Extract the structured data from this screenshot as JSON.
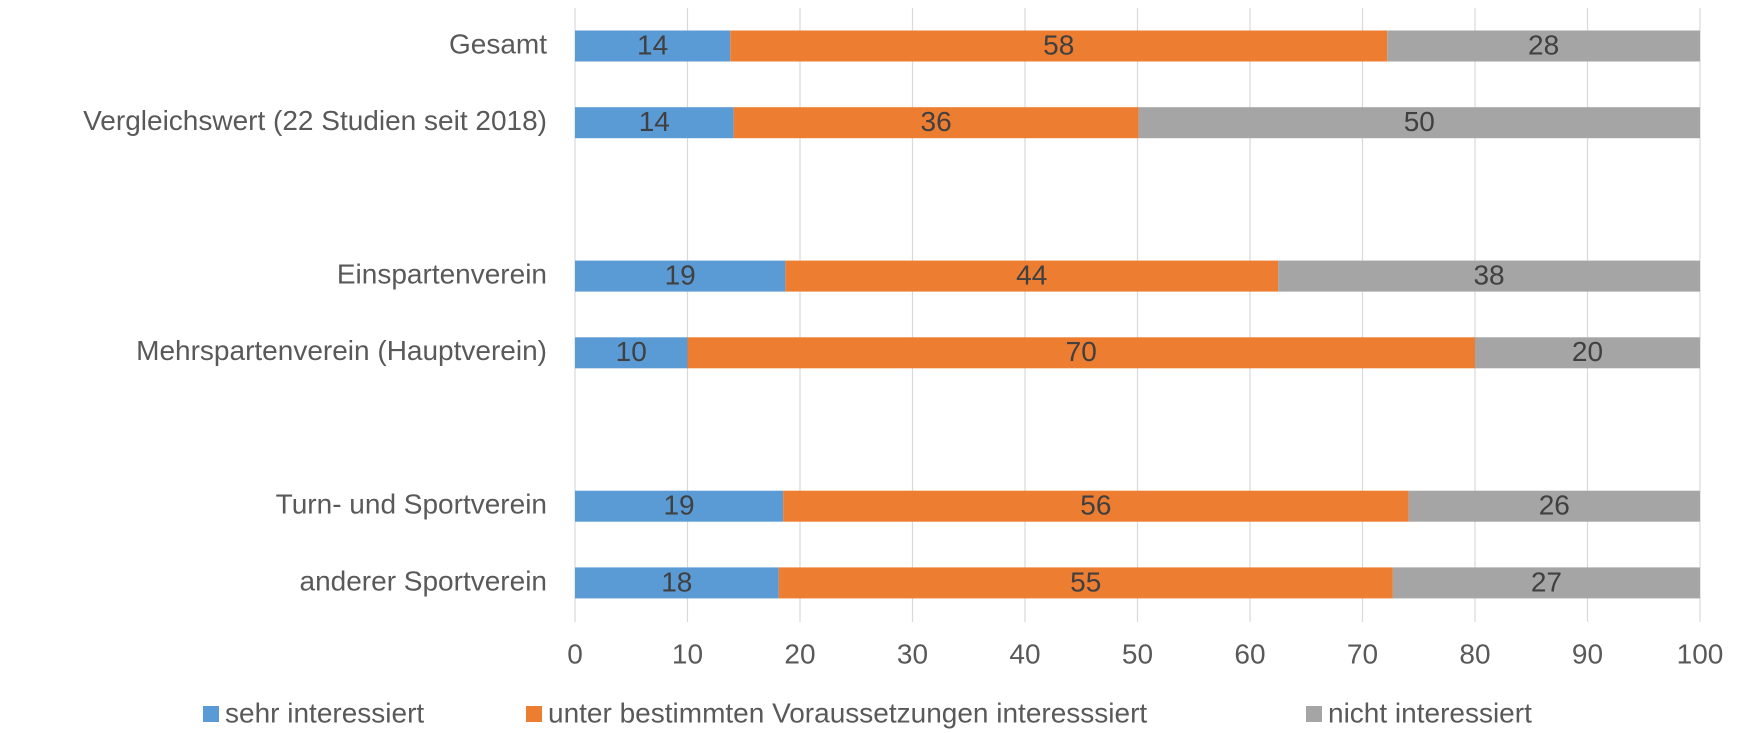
{
  "chart_data": {
    "type": "stacked_barh",
    "categories": [
      "Gesamt",
      "Vergleichswert (22 Studien seit 2018)",
      null,
      "Einspartenverein",
      "Mehrspartenverein (Hauptverein)",
      null,
      "Turn- und Sportverein",
      "anderer Sportverein"
    ],
    "series": [
      {
        "name": "sehr interessiert",
        "color": "#5b9bd5",
        "values": [
          13.8,
          14.1,
          null,
          18.7,
          10.0,
          null,
          18.5,
          18.1
        ],
        "value_labels": [
          "14",
          "14",
          null,
          "19",
          "10",
          null,
          "19",
          "18"
        ]
      },
      {
        "name": "unter bestimmten Voraussetzungen interesssiert",
        "color": "#ed7d31",
        "values": [
          58.4,
          36.0,
          null,
          43.8,
          70.0,
          null,
          55.6,
          54.6
        ],
        "value_labels": [
          "58",
          "36",
          null,
          "44",
          "70",
          null,
          "56",
          "55"
        ]
      },
      {
        "name": "nicht interessiert",
        "color": "#a5a5a5",
        "values": [
          27.8,
          49.9,
          null,
          37.5,
          20.0,
          null,
          25.9,
          27.3
        ],
        "value_labels": [
          "28",
          "50",
          null,
          "38",
          "20",
          null,
          "26",
          "27"
        ]
      }
    ],
    "xlim": [
      0,
      100
    ],
    "xticks": [
      0,
      10,
      20,
      30,
      40,
      50,
      60,
      70,
      80,
      90,
      100
    ],
    "grid": true,
    "legend": "bottom"
  }
}
